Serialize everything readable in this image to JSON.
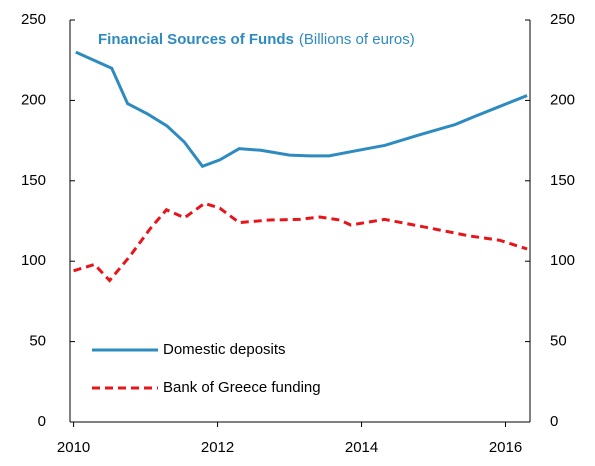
{
  "chart_data": {
    "type": "line",
    "title": "Financial Sources of Funds",
    "subtitle": "(Billions of euros)",
    "series": [
      {
        "name": "Domestic deposits",
        "color": "#2e8bc0",
        "dash": "solid",
        "x": [
          2010.03,
          2010.53,
          2010.75,
          2011.03,
          2011.3,
          2011.54,
          2011.79,
          2012.03,
          2012.3,
          2012.6,
          2013.0,
          2013.28,
          2013.55,
          2013.9,
          2014.32,
          2014.8,
          2015.3,
          2015.57,
          2015.85,
          2016.3
        ],
        "values": [
          230,
          220,
          198,
          191.5,
          184,
          174,
          159,
          163,
          170,
          169,
          166,
          165.5,
          165.5,
          168.5,
          172,
          178.5,
          185,
          190,
          195,
          203
        ]
      },
      {
        "name": "Bank of Greece funding",
        "color": "#e8141c",
        "dash": "dashed",
        "x": [
          2010.0,
          2010.29,
          2010.5,
          2010.78,
          2011.06,
          2011.29,
          2011.54,
          2011.82,
          2012.03,
          2012.3,
          2012.72,
          2013.14,
          2013.42,
          2013.7,
          2013.85,
          2014.32,
          2014.95,
          2015.5,
          2015.92,
          2016.3
        ],
        "values": [
          94,
          98,
          88,
          103,
          120,
          132,
          127,
          136,
          133,
          124,
          125.6,
          126,
          127.5,
          125.6,
          122.5,
          126,
          120.6,
          115.7,
          113,
          107.6
        ]
      }
    ],
    "xlim": [
      2009.95,
      2016.34
    ],
    "xticks": [
      2010,
      2012,
      2014,
      2016
    ],
    "ylim": [
      0,
      250
    ],
    "yticks": [
      0,
      50,
      100,
      150,
      200,
      250
    ],
    "y2lim": [
      0,
      250
    ],
    "y2ticks": [
      0,
      50,
      100,
      150,
      200,
      250
    ],
    "legend": "lower left",
    "grid": false
  }
}
